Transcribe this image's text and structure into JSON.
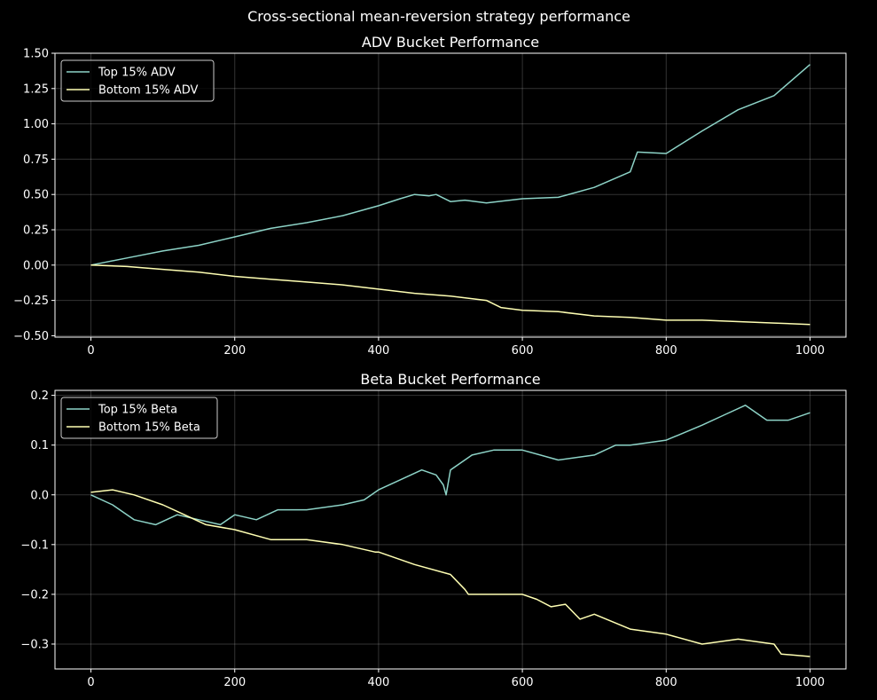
{
  "figure": {
    "suptitle": "Cross-sectional mean-reversion strategy performance",
    "background": "#000000",
    "text_color": "#ffffff"
  },
  "chart_data": [
    {
      "type": "line",
      "title": "ADV Bucket Performance",
      "xlabel": "",
      "ylabel": "",
      "xlim": [
        -50,
        1050
      ],
      "ylim": [
        -0.51,
        1.5
      ],
      "xticks": [
        0,
        200,
        400,
        600,
        800,
        1000
      ],
      "xtick_labels": [
        "0",
        "200",
        "400",
        "600",
        "800",
        "1000"
      ],
      "yticks": [
        1.5,
        1.25,
        1.0,
        0.75,
        0.5,
        0.25,
        0.0,
        -0.25,
        -0.5
      ],
      "ytick_labels": [
        "1.50",
        "1.25",
        "1.00",
        "0.75",
        "0.50",
        "0.25",
        "0.00",
        "−0.25",
        "−0.50"
      ],
      "grid": true,
      "legend_position": "top-left",
      "series": [
        {
          "name": "Top 15% ADV",
          "color": "#8dd3c7",
          "x": [
            0,
            50,
            100,
            150,
            200,
            250,
            300,
            350,
            400,
            430,
            450,
            470,
            480,
            500,
            520,
            550,
            600,
            650,
            700,
            750,
            760,
            800,
            850,
            900,
            950,
            1000
          ],
          "y": [
            0.0,
            0.05,
            0.1,
            0.14,
            0.2,
            0.26,
            0.3,
            0.35,
            0.42,
            0.47,
            0.5,
            0.49,
            0.5,
            0.45,
            0.46,
            0.44,
            0.47,
            0.48,
            0.55,
            0.66,
            0.8,
            0.79,
            0.95,
            1.1,
            1.2,
            1.42
          ]
        },
        {
          "name": "Bottom 15% ADV",
          "color": "#ffffb3",
          "x": [
            0,
            50,
            100,
            150,
            200,
            250,
            300,
            350,
            400,
            450,
            500,
            550,
            570,
            600,
            650,
            700,
            750,
            800,
            850,
            900,
            950,
            1000
          ],
          "y": [
            0.0,
            -0.01,
            -0.03,
            -0.05,
            -0.08,
            -0.1,
            -0.12,
            -0.14,
            -0.17,
            -0.2,
            -0.22,
            -0.25,
            -0.3,
            -0.32,
            -0.33,
            -0.36,
            -0.37,
            -0.39,
            -0.39,
            -0.4,
            -0.41,
            -0.42
          ]
        }
      ]
    },
    {
      "type": "line",
      "title": "Beta Bucket Performance",
      "xlabel": "",
      "ylabel": "",
      "xlim": [
        -50,
        1050
      ],
      "ylim": [
        -0.35,
        0.21
      ],
      "xticks": [
        0,
        200,
        400,
        600,
        800,
        1000
      ],
      "xtick_labels": [
        "0",
        "200",
        "400",
        "600",
        "800",
        "1000"
      ],
      "yticks": [
        0.2,
        0.1,
        0.0,
        -0.1,
        -0.2,
        -0.3
      ],
      "ytick_labels": [
        "0.2",
        "0.1",
        "0.0",
        "−0.1",
        "−0.2",
        "−0.3"
      ],
      "grid": true,
      "legend_position": "top-left",
      "series": [
        {
          "name": "Top 15% Beta",
          "color": "#8dd3c7",
          "x": [
            0,
            30,
            60,
            90,
            120,
            150,
            180,
            200,
            230,
            260,
            300,
            350,
            380,
            400,
            430,
            460,
            480,
            490,
            494,
            500,
            530,
            560,
            600,
            650,
            700,
            730,
            750,
            800,
            850,
            880,
            910,
            940,
            970,
            1000
          ],
          "y": [
            0.0,
            -0.02,
            -0.05,
            -0.06,
            -0.04,
            -0.05,
            -0.06,
            -0.04,
            -0.05,
            -0.03,
            -0.03,
            -0.02,
            -0.01,
            0.01,
            0.03,
            0.05,
            0.04,
            0.02,
            0.0,
            0.05,
            0.08,
            0.09,
            0.09,
            0.07,
            0.08,
            0.1,
            0.1,
            0.11,
            0.14,
            0.16,
            0.18,
            0.15,
            0.15,
            0.165
          ]
        },
        {
          "name": "Bottom 15% Beta",
          "color": "#ffffb3",
          "x": [
            0,
            30,
            60,
            100,
            130,
            160,
            200,
            250,
            300,
            350,
            395,
            400,
            450,
            500,
            520,
            525,
            550,
            600,
            620,
            640,
            660,
            680,
            700,
            750,
            800,
            850,
            900,
            950,
            960,
            1000
          ],
          "y": [
            0.005,
            0.01,
            0.0,
            -0.02,
            -0.04,
            -0.06,
            -0.07,
            -0.09,
            -0.09,
            -0.1,
            -0.115,
            -0.115,
            -0.14,
            -0.16,
            -0.19,
            -0.2,
            -0.2,
            -0.2,
            -0.21,
            -0.225,
            -0.22,
            -0.25,
            -0.24,
            -0.27,
            -0.28,
            -0.3,
            -0.29,
            -0.3,
            -0.32,
            -0.325
          ]
        }
      ]
    }
  ]
}
